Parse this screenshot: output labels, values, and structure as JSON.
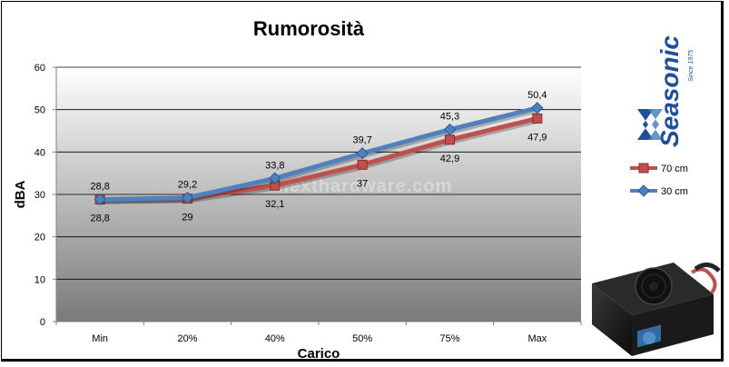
{
  "chart_data": {
    "type": "line",
    "title": "Rumorosità",
    "xlabel": "Carico",
    "ylabel": "dBA",
    "categories": [
      "Min",
      "20%",
      "40%",
      "50%",
      "75%",
      "Max"
    ],
    "ylim": [
      0,
      60
    ],
    "yticks": [
      "0",
      "10",
      "20",
      "30",
      "40",
      "50",
      "60"
    ],
    "grid": true,
    "legend_position": "right",
    "series": [
      {
        "name": "70 cm",
        "values": [
          28.8,
          29,
          32.1,
          37,
          42.9,
          47.9
        ],
        "labels": [
          "28,8",
          "29",
          "32,1",
          "37",
          "42,9",
          "47,9"
        ],
        "label_position": "below",
        "color": "#c0504d",
        "marker": "square"
      },
      {
        "name": "30 cm",
        "values": [
          28.8,
          29.2,
          33.8,
          39.7,
          45.3,
          50.4
        ],
        "labels": [
          "28,8",
          "29,2",
          "33,8",
          "39,7",
          "45,3",
          "50,4"
        ],
        "label_position": "above",
        "color": "#4f81bd",
        "marker": "diamond"
      }
    ]
  },
  "logo": {
    "brand": "Seasonic",
    "tagline": "Since 1975",
    "color": "#1c4fa0"
  },
  "watermark": "nexthardware.com",
  "product_image": "power-supply-unit"
}
